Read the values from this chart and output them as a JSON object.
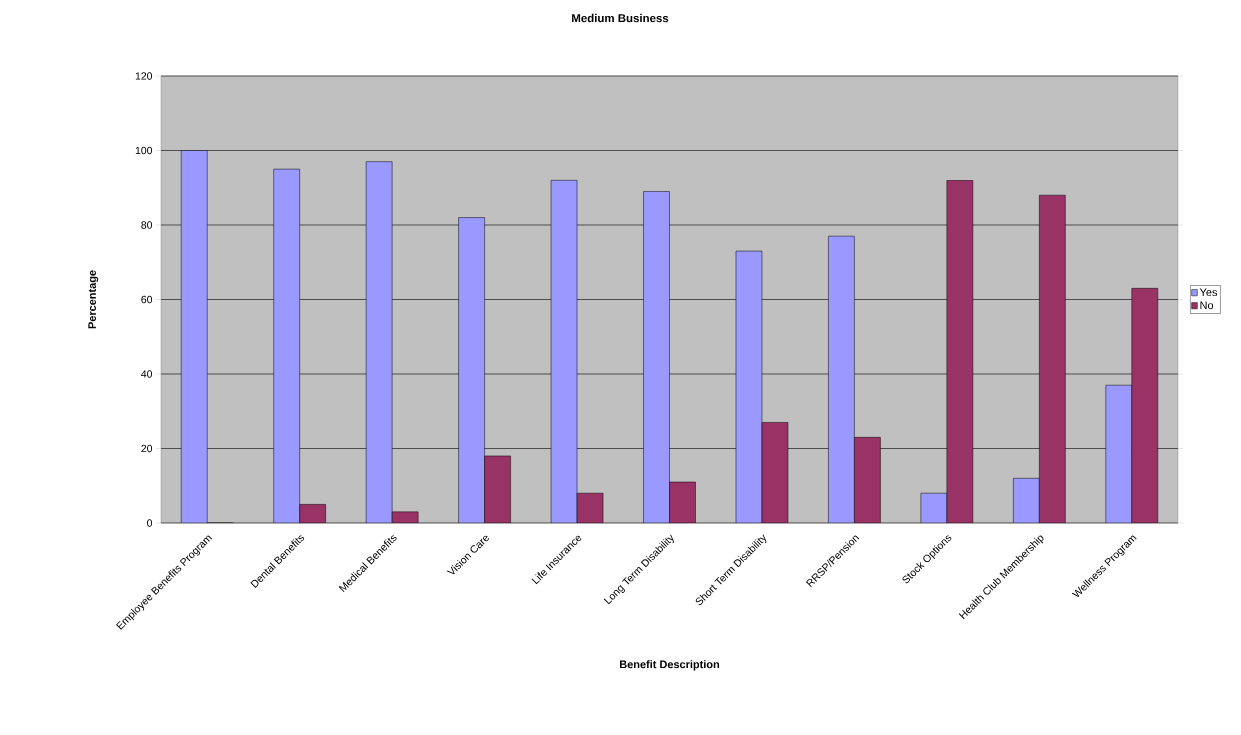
{
  "chart_data": {
    "type": "bar",
    "title": "Medium Business",
    "xlabel": "Benefit Description",
    "ylabel": "Percentage",
    "categories": [
      "Employee Benefits Program",
      "Dental Benefits",
      "Medical Benefits",
      "Vision Care",
      "Life Insurance",
      "Long Term Disability",
      "Short Term Disability",
      "RRSP/Pension",
      "Stock Options",
      "Health Club Membership",
      "Wellness Program"
    ],
    "series": [
      {
        "name": "Yes",
        "color": "#9999ff",
        "values": [
          100,
          95,
          97,
          82,
          92,
          89,
          73,
          77,
          8,
          12,
          37
        ]
      },
      {
        "name": "No",
        "color": "#993366",
        "values": [
          0,
          5,
          3,
          18,
          8,
          11,
          27,
          23,
          92,
          88,
          63
        ]
      }
    ],
    "ylim": [
      0,
      120
    ],
    "yticks": [
      0,
      20,
      40,
      60,
      80,
      100,
      120
    ],
    "grid": "y",
    "legend": "right"
  }
}
